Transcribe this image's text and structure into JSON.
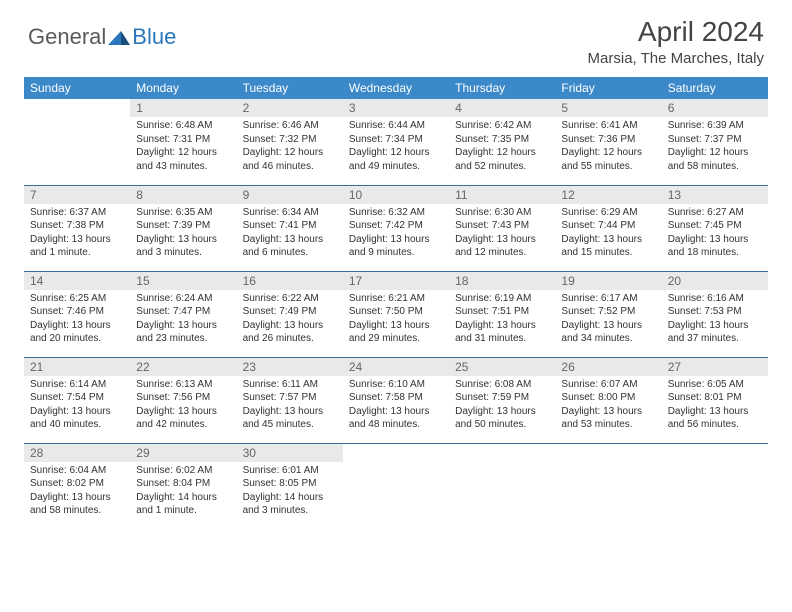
{
  "logo": {
    "general": "General",
    "blue": "Blue"
  },
  "title": "April 2024",
  "location": "Marsia, The Marches, Italy",
  "colors": {
    "header_bg": "#3b89c9",
    "header_fg": "#ffffff",
    "daynum_bg": "#e9e9e9",
    "daynum_fg": "#666666",
    "border": "#3b6fa0",
    "logo_gray": "#5a5a5a",
    "logo_blue": "#2b77bb"
  },
  "weekdays": [
    "Sunday",
    "Monday",
    "Tuesday",
    "Wednesday",
    "Thursday",
    "Friday",
    "Saturday"
  ],
  "weeks": [
    [
      null,
      {
        "n": "1",
        "sr": "6:48 AM",
        "ss": "7:31 PM",
        "dl": "12 hours and 43 minutes."
      },
      {
        "n": "2",
        "sr": "6:46 AM",
        "ss": "7:32 PM",
        "dl": "12 hours and 46 minutes."
      },
      {
        "n": "3",
        "sr": "6:44 AM",
        "ss": "7:34 PM",
        "dl": "12 hours and 49 minutes."
      },
      {
        "n": "4",
        "sr": "6:42 AM",
        "ss": "7:35 PM",
        "dl": "12 hours and 52 minutes."
      },
      {
        "n": "5",
        "sr": "6:41 AM",
        "ss": "7:36 PM",
        "dl": "12 hours and 55 minutes."
      },
      {
        "n": "6",
        "sr": "6:39 AM",
        "ss": "7:37 PM",
        "dl": "12 hours and 58 minutes."
      }
    ],
    [
      {
        "n": "7",
        "sr": "6:37 AM",
        "ss": "7:38 PM",
        "dl": "13 hours and 1 minute."
      },
      {
        "n": "8",
        "sr": "6:35 AM",
        "ss": "7:39 PM",
        "dl": "13 hours and 3 minutes."
      },
      {
        "n": "9",
        "sr": "6:34 AM",
        "ss": "7:41 PM",
        "dl": "13 hours and 6 minutes."
      },
      {
        "n": "10",
        "sr": "6:32 AM",
        "ss": "7:42 PM",
        "dl": "13 hours and 9 minutes."
      },
      {
        "n": "11",
        "sr": "6:30 AM",
        "ss": "7:43 PM",
        "dl": "13 hours and 12 minutes."
      },
      {
        "n": "12",
        "sr": "6:29 AM",
        "ss": "7:44 PM",
        "dl": "13 hours and 15 minutes."
      },
      {
        "n": "13",
        "sr": "6:27 AM",
        "ss": "7:45 PM",
        "dl": "13 hours and 18 minutes."
      }
    ],
    [
      {
        "n": "14",
        "sr": "6:25 AM",
        "ss": "7:46 PM",
        "dl": "13 hours and 20 minutes."
      },
      {
        "n": "15",
        "sr": "6:24 AM",
        "ss": "7:47 PM",
        "dl": "13 hours and 23 minutes."
      },
      {
        "n": "16",
        "sr": "6:22 AM",
        "ss": "7:49 PM",
        "dl": "13 hours and 26 minutes."
      },
      {
        "n": "17",
        "sr": "6:21 AM",
        "ss": "7:50 PM",
        "dl": "13 hours and 29 minutes."
      },
      {
        "n": "18",
        "sr": "6:19 AM",
        "ss": "7:51 PM",
        "dl": "13 hours and 31 minutes."
      },
      {
        "n": "19",
        "sr": "6:17 AM",
        "ss": "7:52 PM",
        "dl": "13 hours and 34 minutes."
      },
      {
        "n": "20",
        "sr": "6:16 AM",
        "ss": "7:53 PM",
        "dl": "13 hours and 37 minutes."
      }
    ],
    [
      {
        "n": "21",
        "sr": "6:14 AM",
        "ss": "7:54 PM",
        "dl": "13 hours and 40 minutes."
      },
      {
        "n": "22",
        "sr": "6:13 AM",
        "ss": "7:56 PM",
        "dl": "13 hours and 42 minutes."
      },
      {
        "n": "23",
        "sr": "6:11 AM",
        "ss": "7:57 PM",
        "dl": "13 hours and 45 minutes."
      },
      {
        "n": "24",
        "sr": "6:10 AM",
        "ss": "7:58 PM",
        "dl": "13 hours and 48 minutes."
      },
      {
        "n": "25",
        "sr": "6:08 AM",
        "ss": "7:59 PM",
        "dl": "13 hours and 50 minutes."
      },
      {
        "n": "26",
        "sr": "6:07 AM",
        "ss": "8:00 PM",
        "dl": "13 hours and 53 minutes."
      },
      {
        "n": "27",
        "sr": "6:05 AM",
        "ss": "8:01 PM",
        "dl": "13 hours and 56 minutes."
      }
    ],
    [
      {
        "n": "28",
        "sr": "6:04 AM",
        "ss": "8:02 PM",
        "dl": "13 hours and 58 minutes."
      },
      {
        "n": "29",
        "sr": "6:02 AM",
        "ss": "8:04 PM",
        "dl": "14 hours and 1 minute."
      },
      {
        "n": "30",
        "sr": "6:01 AM",
        "ss": "8:05 PM",
        "dl": "14 hours and 3 minutes."
      },
      null,
      null,
      null,
      null
    ]
  ],
  "labels": {
    "sunrise": "Sunrise:",
    "sunset": "Sunset:",
    "daylight": "Daylight:"
  }
}
